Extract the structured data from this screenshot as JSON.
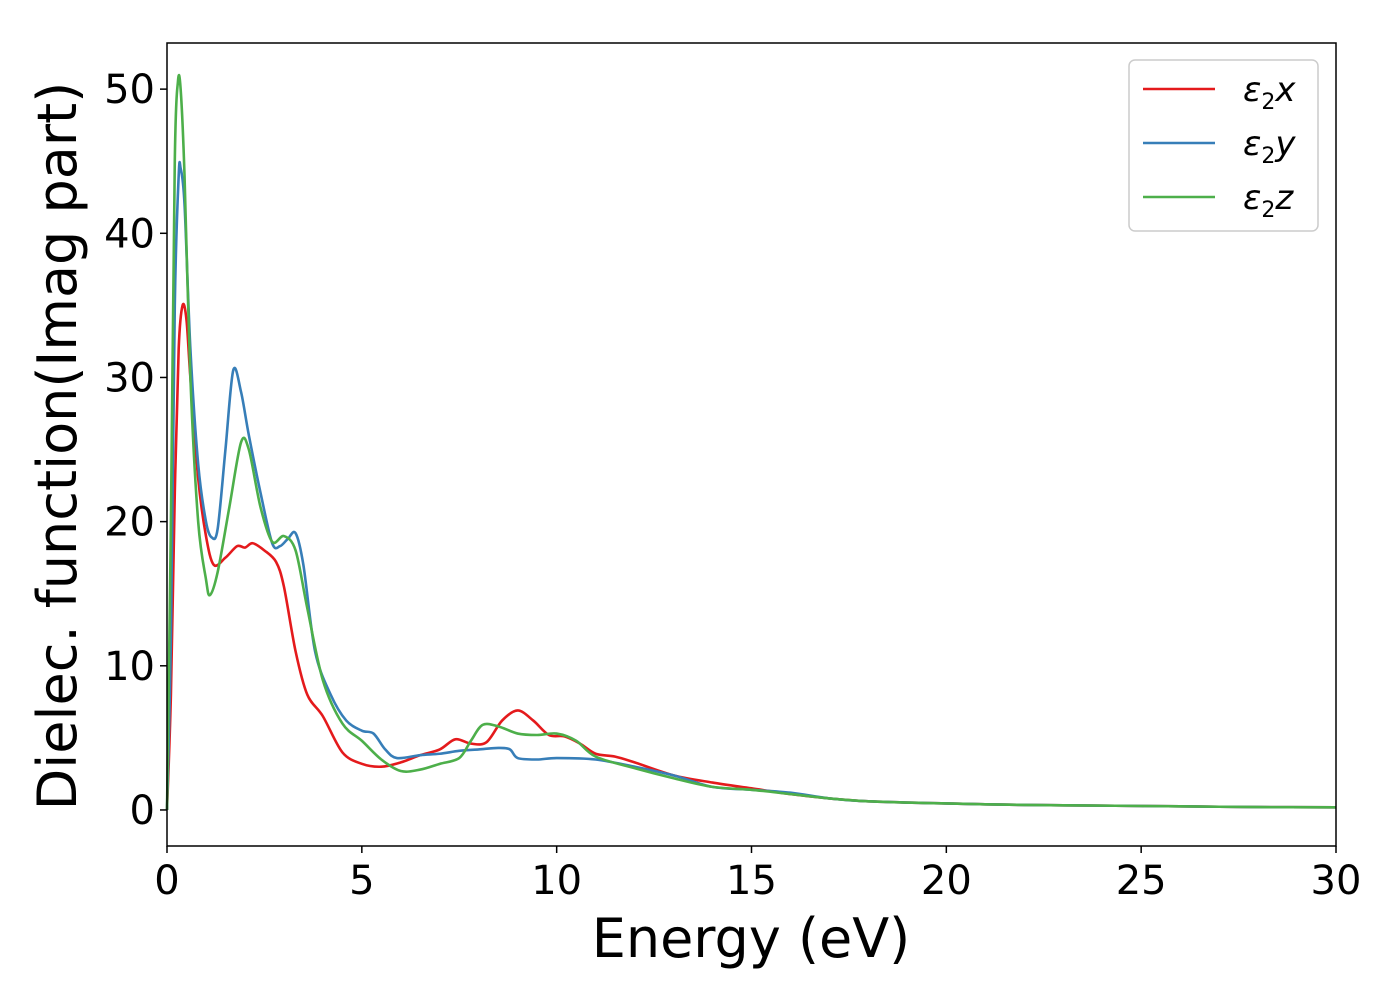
{
  "chart_data": {
    "type": "line",
    "title": "",
    "xlabel": "Energy (eV)",
    "ylabel": "Dielec. function(Imag part)",
    "xlim": [
      0,
      30
    ],
    "ylim": [
      -2.5,
      53.2
    ],
    "xticks": [
      0,
      5,
      10,
      15,
      20,
      25,
      30
    ],
    "xtick_labels": [
      "0",
      "5",
      "10",
      "15",
      "20",
      "25",
      "30"
    ],
    "yticks": [
      0,
      10,
      20,
      30,
      40,
      50
    ],
    "ytick_labels": [
      "0",
      "10",
      "20",
      "30",
      "40",
      "50"
    ],
    "grid": false,
    "legend": {
      "position": "top-right"
    },
    "series": [
      {
        "name": "ε2x",
        "legend_main": "ε",
        "legend_sub": "2",
        "legend_tail": "x",
        "color": "#e41a1c",
        "x": [
          0,
          0.1,
          0.2,
          0.3,
          0.4,
          0.5,
          0.6,
          0.8,
          1.0,
          1.2,
          1.5,
          1.8,
          2.0,
          2.2,
          2.5,
          2.8,
          3.0,
          3.3,
          3.6,
          4.0,
          4.5,
          5.0,
          5.5,
          6.0,
          6.5,
          7.0,
          7.4,
          7.8,
          8.2,
          8.6,
          9.0,
          9.4,
          9.8,
          10.2,
          10.6,
          11.0,
          11.5,
          12.0,
          13.0,
          14.0,
          15.0,
          16.0,
          17.0,
          18.0,
          20.0,
          22.0,
          24.0,
          26.0,
          28.0,
          30.0
        ],
        "y": [
          0,
          8,
          22,
          32,
          35,
          34,
          30,
          23,
          19,
          17,
          17.5,
          18.3,
          18.2,
          18.5,
          18,
          17.2,
          15.5,
          11,
          8,
          6.5,
          4,
          3.2,
          3,
          3.3,
          3.8,
          4.2,
          4.9,
          4.6,
          4.7,
          6.2,
          6.9,
          6.2,
          5.2,
          5.1,
          4.6,
          3.9,
          3.7,
          3.3,
          2.4,
          1.9,
          1.5,
          1.1,
          0.8,
          0.6,
          0.45,
          0.35,
          0.3,
          0.25,
          0.2,
          0.18
        ]
      },
      {
        "name": "ε2y",
        "legend_main": "ε",
        "legend_sub": "2",
        "legend_tail": "y",
        "color": "#377eb8",
        "x": [
          0,
          0.1,
          0.2,
          0.3,
          0.35,
          0.45,
          0.6,
          0.8,
          1.0,
          1.15,
          1.3,
          1.5,
          1.7,
          1.9,
          2.1,
          2.4,
          2.7,
          2.9,
          3.1,
          3.3,
          3.5,
          3.8,
          4.2,
          4.6,
          5.0,
          5.3,
          5.6,
          5.9,
          6.5,
          7.0,
          7.5,
          8.0,
          8.5,
          8.8,
          9.0,
          9.5,
          10.0,
          11.0,
          12.0,
          13.0,
          14.0,
          15.0,
          16.0,
          17.0,
          18.0,
          20.0,
          22.0,
          24.0,
          26.0,
          28.0,
          30.0
        ],
        "y": [
          0,
          12,
          35,
          44,
          44.5,
          42,
          32,
          24,
          20,
          18.9,
          19.5,
          25,
          30.5,
          29,
          26,
          22,
          18.5,
          18.3,
          18.8,
          19.2,
          17,
          11,
          8,
          6.2,
          5.5,
          5.3,
          4.2,
          3.6,
          3.8,
          3.9,
          4.1,
          4.2,
          4.3,
          4.2,
          3.6,
          3.5,
          3.6,
          3.5,
          3.0,
          2.4,
          1.6,
          1.4,
          1.2,
          0.8,
          0.6,
          0.45,
          0.35,
          0.3,
          0.25,
          0.2,
          0.18
        ]
      },
      {
        "name": "ε2z",
        "legend_main": "ε",
        "legend_sub": "2",
        "legend_tail": "z",
        "color": "#4daf4a",
        "x": [
          0,
          0.1,
          0.2,
          0.28,
          0.35,
          0.45,
          0.6,
          0.8,
          1.0,
          1.1,
          1.3,
          1.6,
          1.9,
          2.1,
          2.4,
          2.7,
          3.0,
          3.3,
          3.6,
          4.0,
          4.5,
          5.0,
          5.5,
          6.0,
          6.5,
          7.0,
          7.5,
          7.8,
          8.1,
          8.5,
          9.0,
          9.5,
          10.0,
          10.5,
          11.0,
          12.0,
          13.0,
          14.0,
          15.0,
          16.0,
          17.0,
          18.0,
          20.0,
          22.0,
          24.0,
          26.0,
          28.0,
          30.0
        ],
        "y": [
          0,
          20,
          45,
          50.5,
          50,
          44,
          30,
          20,
          16,
          14.9,
          16.5,
          21,
          25.5,
          25,
          21,
          18.6,
          19,
          18,
          14,
          9,
          6,
          4.8,
          3.5,
          2.7,
          2.8,
          3.2,
          3.6,
          4.8,
          5.9,
          5.8,
          5.3,
          5.2,
          5.3,
          4.8,
          3.7,
          2.9,
          2.2,
          1.6,
          1.4,
          1.1,
          0.8,
          0.6,
          0.45,
          0.35,
          0.3,
          0.25,
          0.2,
          0.18
        ]
      }
    ]
  }
}
